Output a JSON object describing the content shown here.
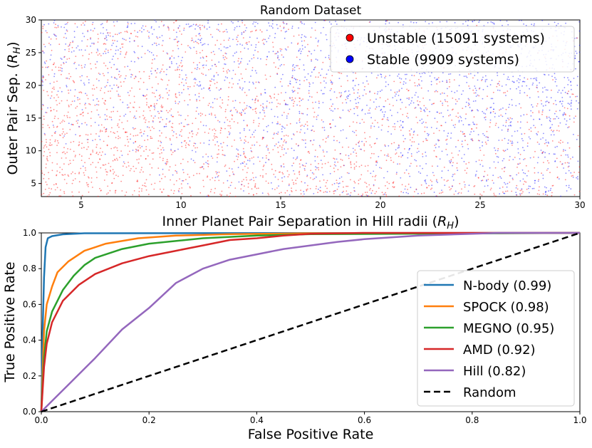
{
  "chart_data": [
    {
      "type": "scatter",
      "title": "Random Dataset",
      "xlabel": "Inner Planet Pair Separation in Hill radii",
      "xlabel_unit": "(R_H)",
      "ylabel": "Outer Pair Sep.",
      "ylabel_unit": "(R_H)",
      "xlim": [
        3,
        30
      ],
      "ylim": [
        3,
        30
      ],
      "xticks": [
        5,
        10,
        15,
        20,
        25,
        30
      ],
      "yticks": [
        5,
        10,
        15,
        20,
        25,
        30
      ],
      "legend_position": "top-right",
      "series": [
        {
          "name": "Unstable (15091 systems)",
          "color": "#ff0000",
          "count": 15091
        },
        {
          "name": "Stable (9909 systems)",
          "color": "#0000ff",
          "count": 9909
        }
      ]
    },
    {
      "type": "line",
      "xlabel": "False Positive Rate",
      "ylabel": "True Positive Rate",
      "xlim": [
        0.0,
        1.0
      ],
      "ylim": [
        0.0,
        1.0
      ],
      "xticks": [
        "0.0",
        "0.2",
        "0.4",
        "0.6",
        "0.8",
        "1.0"
      ],
      "yticks": [
        "0.0",
        "0.2",
        "0.4",
        "0.6",
        "0.8",
        "1.0"
      ],
      "legend_position": "lower-right",
      "series": [
        {
          "name": "N-body (0.99)",
          "color": "#1f77b4",
          "dash": false,
          "x": [
            0,
            0.002,
            0.005,
            0.008,
            0.012,
            0.02,
            0.04,
            0.08,
            1.0
          ],
          "y": [
            0,
            0.4,
            0.75,
            0.92,
            0.97,
            0.982,
            0.992,
            0.998,
            1.0
          ]
        },
        {
          "name": "SPOCK (0.98)",
          "color": "#ff7f0e",
          "dash": false,
          "x": [
            0,
            0.005,
            0.01,
            0.02,
            0.03,
            0.05,
            0.08,
            0.12,
            0.18,
            0.25,
            0.35,
            0.5,
            1.0
          ],
          "y": [
            0,
            0.45,
            0.6,
            0.7,
            0.78,
            0.84,
            0.9,
            0.94,
            0.97,
            0.985,
            0.993,
            0.998,
            1.0
          ]
        },
        {
          "name": "MEGNO (0.95)",
          "color": "#2ca02c",
          "dash": false,
          "x": [
            0,
            0.005,
            0.01,
            0.02,
            0.04,
            0.06,
            0.08,
            0.1,
            0.15,
            0.2,
            0.3,
            0.4,
            0.5,
            1.0
          ],
          "y": [
            0,
            0.3,
            0.45,
            0.56,
            0.68,
            0.76,
            0.82,
            0.86,
            0.91,
            0.94,
            0.97,
            0.985,
            0.993,
            1.0
          ]
        },
        {
          "name": "AMD (0.92)",
          "color": "#d62728",
          "dash": false,
          "x": [
            0,
            0.005,
            0.01,
            0.02,
            0.04,
            0.07,
            0.1,
            0.15,
            0.2,
            0.25,
            0.3,
            0.35,
            0.4,
            0.45,
            0.5,
            0.6,
            1.0
          ],
          "y": [
            0,
            0.25,
            0.38,
            0.5,
            0.62,
            0.71,
            0.77,
            0.83,
            0.87,
            0.9,
            0.93,
            0.96,
            0.97,
            0.985,
            0.995,
            1.0,
            1.0
          ]
        },
        {
          "name": "Hill (0.82)",
          "color": "#9467bd",
          "dash": false,
          "x": [
            0,
            0.02,
            0.05,
            0.1,
            0.15,
            0.2,
            0.25,
            0.3,
            0.35,
            0.4,
            0.45,
            0.5,
            0.55,
            0.6,
            0.65,
            0.7,
            0.75,
            0.8,
            0.85,
            1.0
          ],
          "y": [
            0,
            0.06,
            0.15,
            0.3,
            0.46,
            0.58,
            0.72,
            0.8,
            0.85,
            0.88,
            0.91,
            0.93,
            0.95,
            0.965,
            0.975,
            0.985,
            0.99,
            0.995,
            1.0,
            1.0
          ]
        },
        {
          "name": "Random",
          "color": "#000000",
          "dash": true,
          "x": [
            0,
            1
          ],
          "y": [
            0,
            1
          ]
        }
      ]
    }
  ]
}
